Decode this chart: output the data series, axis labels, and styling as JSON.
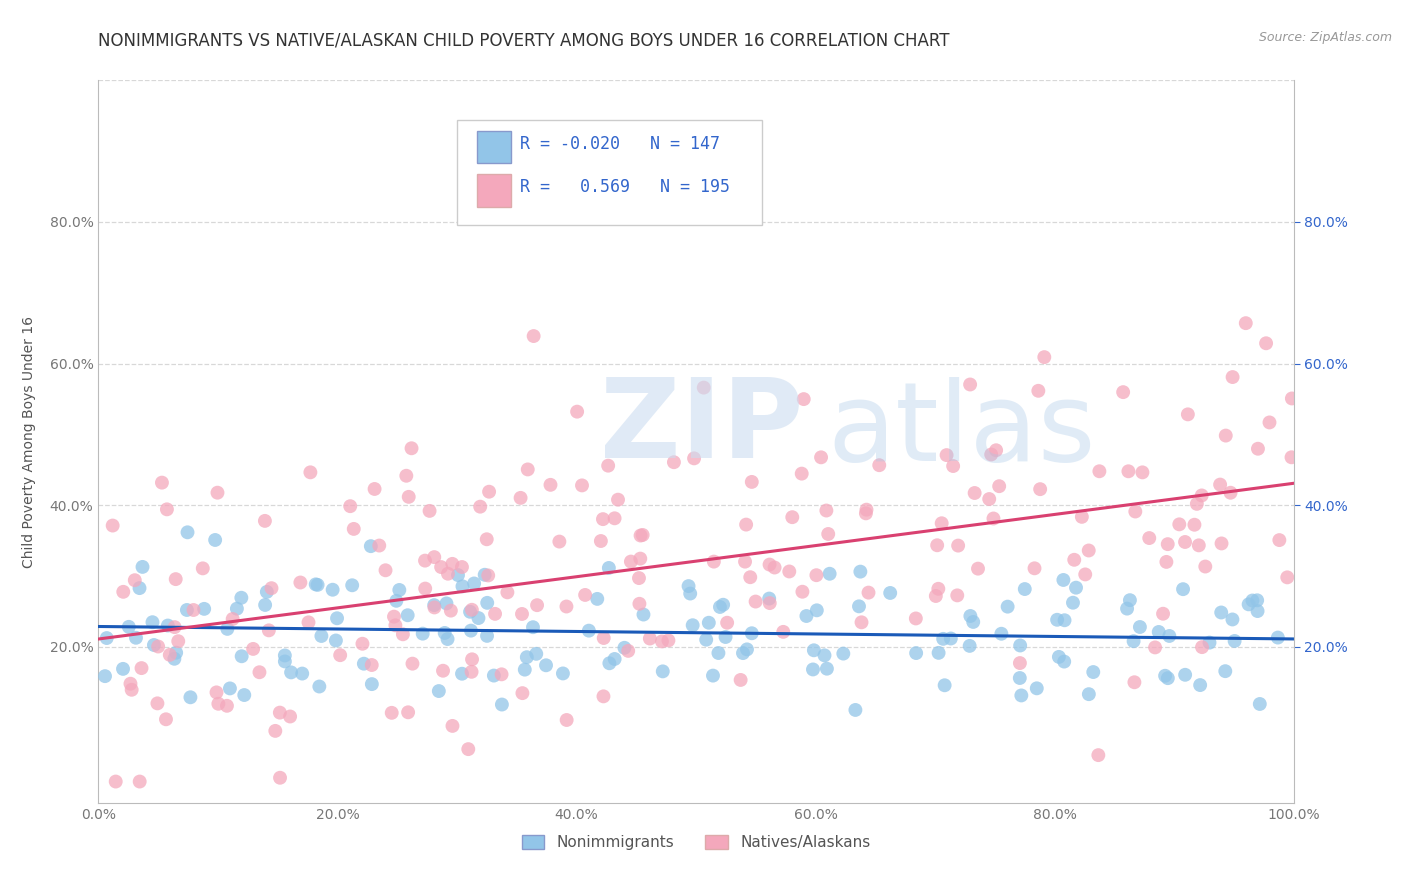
{
  "title": "NONIMMIGRANTS VS NATIVE/ALASKAN CHILD POVERTY AMONG BOYS UNDER 16 CORRELATION CHART",
  "source": "Source: ZipAtlas.com",
  "ylabel": "Child Poverty Among Boys Under 16",
  "xlim": [
    0,
    1
  ],
  "ylim": [
    -0.02,
    1.0
  ],
  "xticks": [
    0.0,
    0.2,
    0.4,
    0.6,
    0.8,
    1.0
  ],
  "yticks": [
    0.2,
    0.4,
    0.6,
    0.8
  ],
  "xticklabels": [
    "0.0%",
    "20.0%",
    "40.0%",
    "60.0%",
    "80.0%",
    "100.0%"
  ],
  "yticklabels": [
    "20.0%",
    "40.0%",
    "60.0%",
    "80.0%"
  ],
  "legend_label1": "Nonimmigrants",
  "legend_label2": "Natives/Alaskans",
  "R1": "-0.020",
  "N1": "147",
  "R2": "0.569",
  "N2": "195",
  "color1": "#92c5e8",
  "color2": "#f4a8bc",
  "line_color1": "#1a5ab8",
  "line_color2": "#d94070",
  "background_color": "#ffffff",
  "grid_color": "#d8d8d8",
  "title_fontsize": 12,
  "axis_fontsize": 10,
  "tick_fontsize": 10,
  "right_tick_color": "#3366cc",
  "seed1": 42,
  "seed2": 77
}
